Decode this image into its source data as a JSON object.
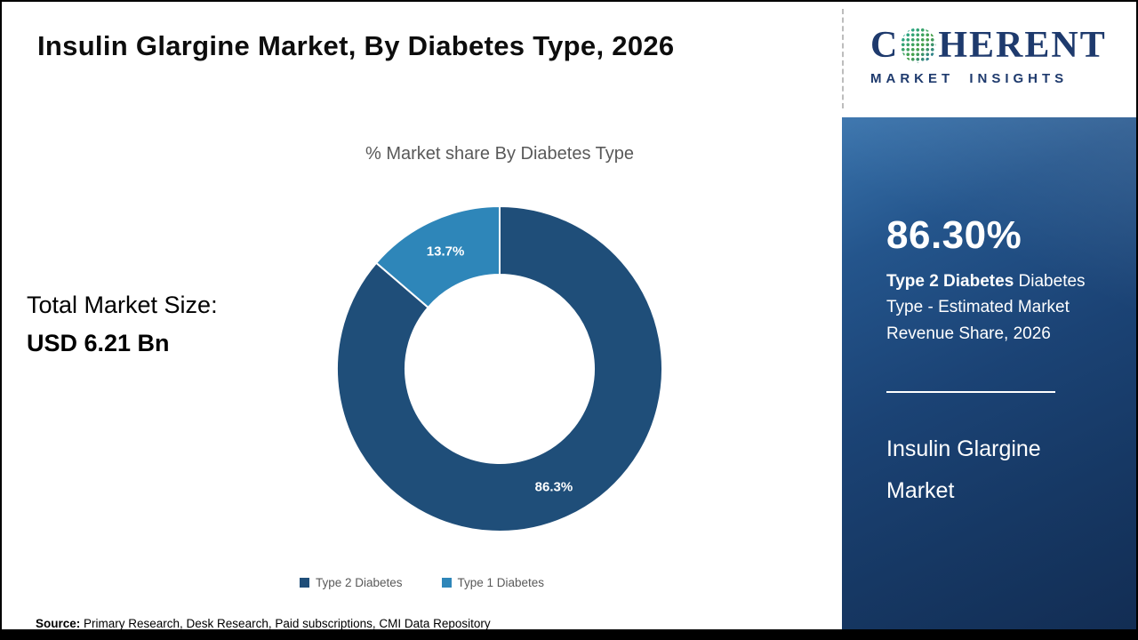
{
  "header": {
    "title": "Insulin Glargine Market,  By Diabetes Type, 2026"
  },
  "logo": {
    "first_letter": "C",
    "rest": "HERENT",
    "subtitle": "MARKET INSIGHTS"
  },
  "left_panel": {
    "total_label": "Total Market Size:",
    "total_value": "USD 6.21 Bn"
  },
  "chart_data": {
    "type": "pie",
    "subtype": "donut",
    "title": "% Market share  By Diabetes Type",
    "series": [
      {
        "name": "Type 2 Diabetes",
        "value": 86.3,
        "label": "86.3%",
        "color": "#1f4e79"
      },
      {
        "name": "Type 1 Diabetes",
        "value": 13.7,
        "label": "13.7%",
        "color": "#2e86b9"
      }
    ],
    "start_angle_deg": 0,
    "direction": "clockwise",
    "inner_radius_ratio": 0.58,
    "legend_position": "bottom"
  },
  "sidebar": {
    "stat_value": "86.30%",
    "stat_bold": "Type 2 Diabetes",
    "stat_rest": " Diabetes Type - Estimated Market Revenue Share, 2026",
    "product_title": "Insulin Glargine Market"
  },
  "footer": {
    "source_label": "Source:",
    "source_text": " Primary Research, Desk Research, Paid subscriptions, CMI Data Repository"
  }
}
